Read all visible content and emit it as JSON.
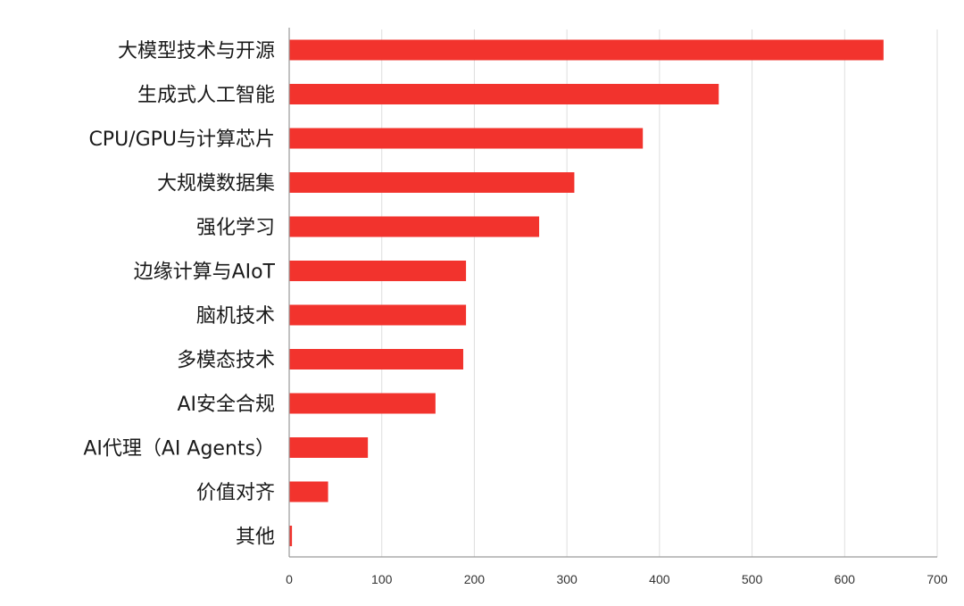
{
  "chart_data": {
    "type": "bar",
    "orientation": "horizontal",
    "categories": [
      "大模型技术与开源",
      "生成式人工智能",
      "CPU/GPU与计算芯片",
      "大规模数据集",
      "强化学习",
      "边缘计算与AIoT",
      "脑机技术",
      "多模态技术",
      "AI安全合规",
      "AI代理（AI Agents）",
      "价值对齐",
      "其他"
    ],
    "values": [
      642,
      464,
      382,
      308,
      270,
      191,
      191,
      188,
      158,
      85,
      42,
      3
    ],
    "title": "",
    "xlabel": "",
    "ylabel": "",
    "xlim": [
      0,
      700
    ],
    "xticks": [
      0,
      100,
      200,
      300,
      400,
      500,
      600,
      700
    ],
    "grid": "vertical",
    "legend": "none",
    "colors": {
      "bar": "#f2332d",
      "grid": "#dedede",
      "axis": "#9a9a9a",
      "text": "#1a1a1a"
    }
  }
}
